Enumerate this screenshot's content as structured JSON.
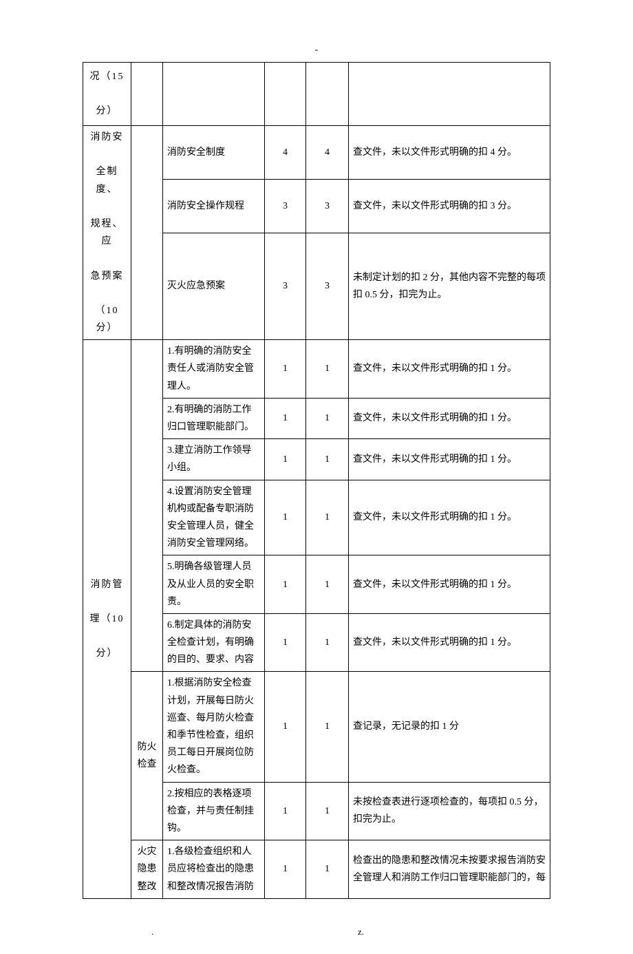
{
  "header_dash": "-",
  "rows": [
    {
      "a": "况（15\n\n分）",
      "b": "",
      "c": "",
      "d": "",
      "e": "",
      "f": ""
    },
    {
      "a": "消防安\n\n全制度、\n\n规程、应\n\n急预案\n\n（10 分）",
      "b": "",
      "c": "消防安全制度",
      "d": "4",
      "e": "4",
      "f": "查文件，未以文件形式明确的扣 4 分。"
    },
    {
      "c": "消防安全操作规程",
      "d": "3",
      "e": "3",
      "f": "查文件，未以文件形式明确的扣 3 分。"
    },
    {
      "c": "灭火应急预案",
      "d": "3",
      "e": "3",
      "f": "未制定计划的扣 2 分，其他内容不完整的每项扣 0.5 分，扣完为止。"
    },
    {
      "a": "消防管\n\n理（10\n\n分）",
      "b": "",
      "c": "1.有明确的消防安全责任人或消防安全管理人。",
      "d": "1",
      "e": "1",
      "f": "查文件，未以文件形式明确的扣 1 分。"
    },
    {
      "c": "2.有明确的消防工作归口管理职能部门。",
      "d": "1",
      "e": "1",
      "f": "查文件，未以文件形式明确的扣 1 分。"
    },
    {
      "c": "3.建立消防工作领导小组。",
      "d": "1",
      "e": "1",
      "f": "查文件，未以文件形式明确的扣 1 分。"
    },
    {
      "c": "4.设置消防安全管理机构或配备专职消防安全管理人员，健全消防安全管理网络。",
      "d": "1",
      "e": "1",
      "f": "查文件，未以文件形式明确的扣 1 分。"
    },
    {
      "c": "5.明确各级管理人员及从业人员的安全职责。",
      "d": "1",
      "e": "1",
      "f": "查文件，未以文件形式明确的扣 1 分。"
    },
    {
      "c": "6.制定具体的消防安全检查计划，有明确的目的、要求、内容",
      "d": "1",
      "e": "1",
      "f": "查文件，未以文件形式明确的扣 1 分。"
    },
    {
      "b": "防火检查",
      "c": "1.根据消防安全检查计划，开展每日防火巡查、每月防火检查和季节性检查，组织员工每日开展岗位防火检查。",
      "d": "1",
      "e": "1",
      "f": "查记录，无记录的扣 1 分"
    },
    {
      "c": "2.按相应的表格逐项检查，并与责任制挂钩。",
      "d": "1",
      "e": "1",
      "f": "未按检查表进行逐项检查的，每项扣 0.5 分，扣完为止。"
    },
    {
      "b": "火灾隐患整改",
      "c": "1.各级检查组织和人员应将检查出的隐患和整改情况报告消防",
      "d": "1",
      "e": "1",
      "f": "检查出的隐患和整改情况未按要求报告消防安全管理人和消防工作归口管理职能部门的，每"
    }
  ],
  "footer_dot": ".",
  "footer_z": "z."
}
